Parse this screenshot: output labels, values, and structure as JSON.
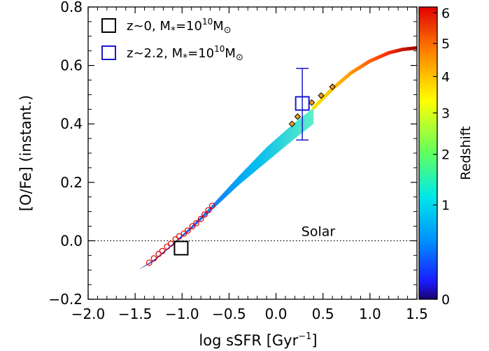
{
  "chart_data": {
    "type": "line",
    "xlabel": "log sSFR [Gyr",
    "xlabel_sup": "−1",
    "xlabel_close": "]",
    "ylabel": "[O/Fe] (instant.)",
    "xlim": [
      -2.0,
      1.5
    ],
    "ylim": [
      -0.2,
      0.8
    ],
    "x_ticks": [
      -2.0,
      -1.5,
      -1.0,
      -0.5,
      0.0,
      0.5,
      1.0,
      1.5
    ],
    "x_tick_labels": [
      "−2.0",
      "−1.5",
      "−1.0",
      "−0.5",
      "0.0",
      "0.5",
      "1.0",
      "1.5"
    ],
    "y_ticks": [
      -0.2,
      0.0,
      0.2,
      0.4,
      0.6,
      0.8
    ],
    "y_tick_labels": [
      "−0.2",
      "0.0",
      "0.2",
      "0.4",
      "0.6",
      "0.8"
    ],
    "colorbar": {
      "label": "Redshift",
      "ticks": [
        0,
        1,
        2,
        3,
        4,
        5,
        6
      ],
      "tick_labels": [
        "0",
        "1",
        "2",
        "3",
        "4",
        "5",
        "6"
      ],
      "range": [
        0,
        6.2
      ]
    },
    "reference_line": {
      "y": 0.0,
      "label": "Solar",
      "style": "dotted"
    },
    "track_band": {
      "lower": [
        [
          -1.47,
          -0.1
        ],
        [
          -1.3,
          -0.07
        ],
        [
          -1.1,
          -0.015
        ],
        [
          -0.9,
          0.04
        ],
        [
          -0.7,
          0.1
        ],
        [
          -0.4,
          0.19
        ],
        [
          -0.1,
          0.27
        ],
        [
          0.2,
          0.35
        ],
        [
          0.4,
          0.4
        ]
      ],
      "upper": [
        [
          -1.47,
          -0.1
        ],
        [
          -1.3,
          -0.065
        ],
        [
          -1.1,
          -0.01
        ],
        [
          -0.9,
          0.05
        ],
        [
          -0.7,
          0.115
        ],
        [
          -0.4,
          0.22
        ],
        [
          -0.1,
          0.32
        ],
        [
          0.2,
          0.405
        ],
        [
          0.4,
          0.455
        ]
      ]
    },
    "track_upper": {
      "points": [
        [
          0.4,
          0.455
        ],
        [
          0.6,
          0.52
        ],
        [
          0.8,
          0.575
        ],
        [
          1.0,
          0.615
        ],
        [
          1.2,
          0.643
        ],
        [
          1.35,
          0.655
        ],
        [
          1.5,
          0.66
        ]
      ],
      "z_start": 3.0,
      "z_end": 6.0
    },
    "diamonds": [
      [
        0.17,
        0.4
      ],
      [
        0.23,
        0.425
      ],
      [
        0.38,
        0.473
      ],
      [
        0.48,
        0.497
      ],
      [
        0.6,
        0.527
      ]
    ],
    "circles": [
      [
        -1.35,
        -0.075
      ],
      [
        -1.3,
        -0.06
      ],
      [
        -1.25,
        -0.045
      ],
      [
        -1.21,
        -0.035
      ],
      [
        -1.16,
        -0.02
      ],
      [
        -1.12,
        -0.01
      ],
      [
        -1.07,
        0.005
      ],
      [
        -1.03,
        0.015
      ],
      [
        -0.98,
        0.025
      ],
      [
        -0.94,
        0.035
      ],
      [
        -0.89,
        0.05
      ],
      [
        -0.85,
        0.06
      ],
      [
        -0.8,
        0.075
      ],
      [
        -0.76,
        0.09
      ],
      [
        -0.72,
        0.105
      ],
      [
        -0.68,
        0.12
      ]
    ],
    "observations": [
      {
        "name": "z∼0, M*=10^10 M⊙",
        "x": -1.01,
        "y": -0.025,
        "color": "#000000"
      },
      {
        "name": "z∼2.2, M*=10^10 M⊙",
        "x": 0.28,
        "y": 0.47,
        "yerr": [
          0.125,
          0.12
        ],
        "color": "#1a1acc"
      }
    ],
    "legend": [
      {
        "color": "#000000",
        "prefix": "z∼0,  M",
        "sub": "*",
        "mid": "=10",
        "sup": "10",
        "end": "M",
        "end_sym": "⊙"
      },
      {
        "color": "#1a1acc",
        "prefix": "z∼2.2,  M",
        "sub": "*",
        "mid": "=10",
        "sup": "10",
        "end": "M",
        "end_sym": "⊙"
      }
    ],
    "legend_placement": "top-left"
  }
}
